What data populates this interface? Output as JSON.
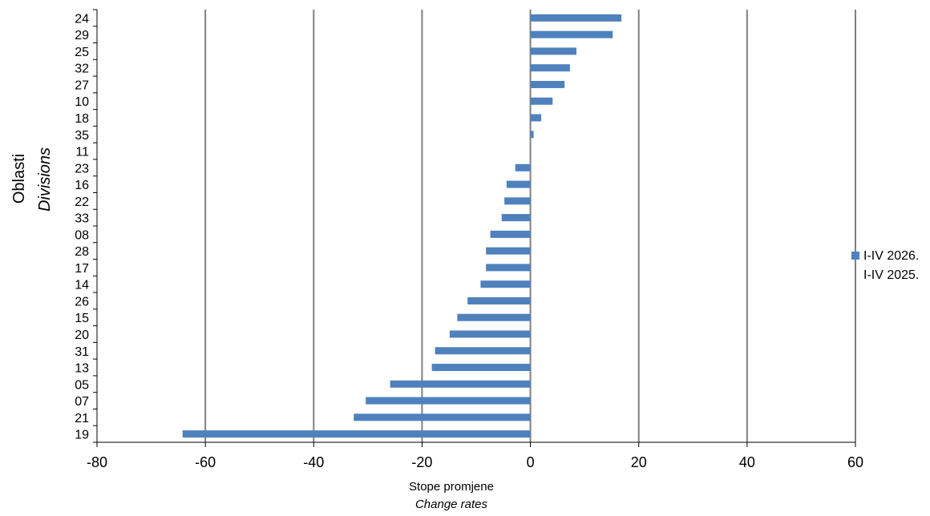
{
  "chart_data": {
    "type": "bar",
    "orientation": "horizontal",
    "categories": [
      "24",
      "29",
      "25",
      "32",
      "27",
      "10",
      "18",
      "35",
      "11",
      "23",
      "16",
      "22",
      "33",
      "08",
      "28",
      "17",
      "14",
      "26",
      "15",
      "20",
      "31",
      "13",
      "05",
      "07",
      "21",
      "19"
    ],
    "series": [
      {
        "name": "I-IV 2026.\nI-IV 2025.",
        "color": "#4F81BD",
        "values": [
          16.8,
          15.2,
          8.5,
          7.3,
          6.3,
          4.1,
          2.0,
          0.6,
          0.0,
          -2.8,
          -4.4,
          -4.8,
          -5.3,
          -7.4,
          -8.2,
          -8.2,
          -9.2,
          -11.6,
          -13.5,
          -14.9,
          -17.6,
          -18.2,
          -25.9,
          -30.4,
          -32.6,
          -64.2
        ]
      }
    ],
    "x_axis": {
      "min": -80,
      "max": 60,
      "ticks": [
        -80,
        -60,
        -40,
        -20,
        0,
        20,
        40,
        60
      ],
      "tick_labels": [
        "-80",
        "-60",
        "-40",
        "-20",
        "0",
        "20",
        "40",
        "60"
      ],
      "label_line1": "Stope promjene",
      "label_line2": "Change rates"
    },
    "y_axis": {
      "label_line1": "Oblasti",
      "label_line2": "Divisions"
    },
    "legend": {
      "position": "right",
      "line1": "I-IV 2026.",
      "line2": "I-IV 2025."
    },
    "grid": "vertical"
  }
}
